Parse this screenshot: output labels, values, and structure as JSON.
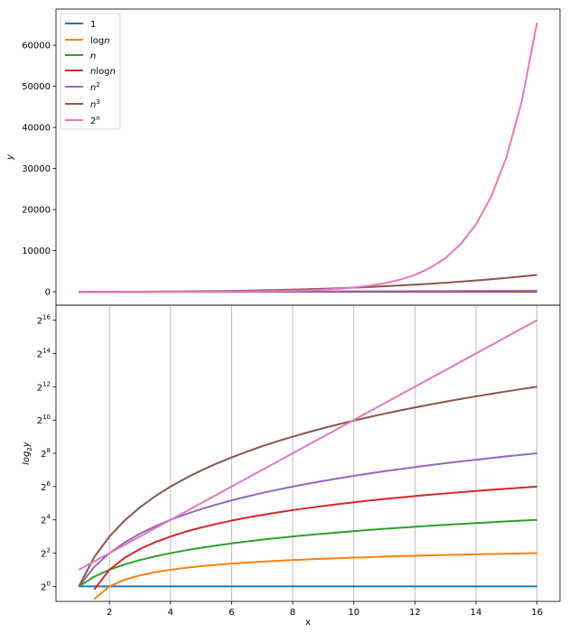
{
  "chart_data": [
    {
      "type": "line",
      "title": "",
      "xlabel": "",
      "ylabel": "y",
      "xlim": [
        0.25,
        16.75
      ],
      "ylim": [
        -3277,
        68813
      ],
      "grid": false,
      "yticks": [
        0,
        10000,
        20000,
        30000,
        40000,
        50000,
        60000
      ],
      "ytick_labels": [
        "0",
        "10000",
        "20000",
        "30000",
        "40000",
        "50000",
        "60000"
      ],
      "legend_position": "top-left",
      "legend": [
        {
          "label": "1",
          "color": "#1f77b4"
        },
        {
          "label": "logn",
          "color": "#ff7f0e"
        },
        {
          "label": "n",
          "color": "#2ca02c"
        },
        {
          "label": "nlogn",
          "color": "#d62728"
        },
        {
          "label": "n2",
          "color": "#9467bd"
        },
        {
          "label": "n3",
          "color": "#8c564b"
        },
        {
          "label": "2n",
          "color": "#e377c2"
        }
      ],
      "x": [
        1,
        1.5,
        2,
        2.5,
        3,
        3.5,
        4,
        4.5,
        5,
        5.5,
        6,
        6.5,
        7,
        7.5,
        8,
        8.5,
        9,
        9.5,
        10,
        10.5,
        11,
        11.5,
        12,
        12.5,
        13,
        13.5,
        14,
        14.5,
        15,
        15.5,
        16
      ],
      "series": [
        {
          "name": "1",
          "color": "#1f77b4",
          "values": [
            1,
            1,
            1,
            1,
            1,
            1,
            1,
            1,
            1,
            1,
            1,
            1,
            1,
            1,
            1,
            1,
            1,
            1,
            1,
            1,
            1,
            1,
            1,
            1,
            1,
            1,
            1,
            1,
            1,
            1,
            1
          ]
        },
        {
          "name": "logn",
          "color": "#ff7f0e",
          "values": [
            0,
            0.585,
            1,
            1.322,
            1.585,
            1.807,
            2,
            2.17,
            2.322,
            2.459,
            2.585,
            2.7,
            2.807,
            2.907,
            3,
            3.087,
            3.17,
            3.248,
            3.322,
            3.392,
            3.459,
            3.524,
            3.585,
            3.644,
            3.7,
            3.755,
            3.807,
            3.858,
            3.907,
            3.954,
            4
          ]
        },
        {
          "name": "n",
          "color": "#2ca02c",
          "values": [
            1,
            1.5,
            2,
            2.5,
            3,
            3.5,
            4,
            4.5,
            5,
            5.5,
            6,
            6.5,
            7,
            7.5,
            8,
            8.5,
            9,
            9.5,
            10,
            10.5,
            11,
            11.5,
            12,
            12.5,
            13,
            13.5,
            14,
            14.5,
            15,
            15.5,
            16
          ]
        },
        {
          "name": "nlogn",
          "color": "#d62728",
          "values": [
            0,
            0.877,
            2,
            3.305,
            4.755,
            6.325,
            8,
            9.766,
            11.61,
            13.53,
            15.51,
            17.55,
            19.65,
            21.8,
            24,
            26.24,
            28.53,
            30.86,
            33.22,
            35.62,
            38.05,
            40.52,
            43.02,
            45.55,
            48.11,
            50.69,
            53.3,
            55.94,
            58.6,
            61.29,
            64
          ]
        },
        {
          "name": "n2",
          "color": "#9467bd",
          "values": [
            1,
            2.25,
            4,
            6.25,
            9,
            12.25,
            16,
            20.25,
            25,
            30.25,
            36,
            42.25,
            49,
            56.25,
            64,
            72.25,
            81,
            90.25,
            100,
            110.25,
            121,
            132.25,
            144,
            156.25,
            169,
            182.25,
            196,
            210.25,
            225,
            240.25,
            256
          ]
        },
        {
          "name": "n3",
          "color": "#8c564b",
          "values": [
            1,
            3.375,
            8,
            15.625,
            27,
            42.875,
            64,
            91.125,
            125,
            166.375,
            216,
            274.625,
            343,
            421.875,
            512,
            614.125,
            729,
            857.375,
            1000,
            1157.625,
            1331,
            1520.875,
            1728,
            1953.125,
            2197,
            2460.375,
            2744,
            3048.625,
            3375,
            3723.875,
            4096
          ]
        },
        {
          "name": "2n",
          "color": "#e377c2",
          "values": [
            2,
            2.828,
            4,
            5.657,
            8,
            11.31,
            16,
            22.63,
            32,
            45.25,
            64,
            90.51,
            128,
            181.02,
            256,
            362.04,
            512,
            724.08,
            1024,
            1448.15,
            2048,
            2896.31,
            4096,
            5792.62,
            8192,
            11585.24,
            16384,
            23170.48,
            32768,
            46340.95,
            65536
          ]
        }
      ]
    },
    {
      "type": "line",
      "title": "",
      "xlabel": "x",
      "ylabel": "log2y",
      "xlim": [
        0.25,
        16.75
      ],
      "ylim_log2": [
        -0.9,
        16.9
      ],
      "log_scale_y": "base 2",
      "grid": "vertical lines at x ticks",
      "xticks": [
        2,
        4,
        6,
        8,
        10,
        12,
        14,
        16
      ],
      "xtick_labels": [
        "2",
        "4",
        "6",
        "8",
        "10",
        "12",
        "14",
        "16"
      ],
      "yticks_log2": [
        0,
        2,
        4,
        6,
        8,
        10,
        12,
        14,
        16
      ],
      "ytick_base": "2",
      "ytick_exponents": [
        "0",
        "2",
        "4",
        "6",
        "8",
        "10",
        "12",
        "14",
        "16"
      ],
      "series_ref": "same series as chart 1 (shared x values)"
    }
  ],
  "legend_labels": {
    "s1": "1",
    "s2_pre": "log",
    "s2_italic": "n",
    "s3_italic": "n",
    "s4_italic1": "n",
    "s4_mid": "log",
    "s4_italic2": "n",
    "s5_base": "n",
    "s5_exp": "2",
    "s6_base": "n",
    "s6_exp": "3",
    "s7_base": "2",
    "s7_exp": "n"
  },
  "labels": {
    "top_ylabel": "y",
    "bottom_ylabel_base": "log",
    "bottom_ylabel_sub": "2",
    "bottom_ylabel_var": "y",
    "bottom_xlabel": "x"
  }
}
